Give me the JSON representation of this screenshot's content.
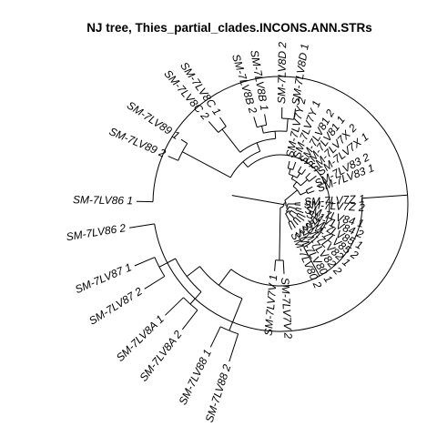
{
  "title": "NJ tree,  Thies_partial_clades.INCONS.ANN.STRs",
  "tip_labels": {
    "sm_7lv8d_1": "SM-7LV8D 1",
    "sm_7lv8d_2": "SM-7LV8D 2",
    "sm_7lv8b_1": "SM-7LV8B 1",
    "sm_7lv8b_2": "SM-7LV8B 2",
    "sm_7lv8c_1": "SM-7LV8C 1",
    "sm_7lv8c_2": "SM-7LV8C 2",
    "sm_7lv89_1": "SM-7LV89 1",
    "sm_7lv89_2": "SM-7LV89 2",
    "sm_7lv86_1": "SM-7LV86 1",
    "sm_7lv86_2": "SM-7LV86 2",
    "sm_7lv87_1": "SM-7LV87 1",
    "sm_7lv87_2": "SM-7LV87 2",
    "sm_7lv8a_1": "SM-7LV8A 1",
    "sm_7lv8a_2": "SM-7LV8A 2",
    "sm_7lv88_1": "SM-7LV88 1",
    "sm_7lv88_2": "SM-7LV88 2",
    "sm_7lv7v_1": "SM-7LV7V 1",
    "sm_7lv7v_2": "SM-7LV7V 2",
    "sm_7lv7y_2": "SM-7LV7Y 2",
    "sm_7lv7y_1": "SM-7LV7Y 1",
    "sm_7lv81_2": "SM-7LV81 2",
    "sm_7lv81_1": "SM-7LV81 1",
    "sm_7lv7x_2": "SM-7LV7X 2",
    "sm_7lv7x_1": "SM-7LV7X 1",
    "sm_7lv83_2": "SM-7LV83 2",
    "sm_7lv83_1": "SM-7LV83 1",
    "sm_7lv7z_1": "SM-7LV7Z 1",
    "sm_7lv7z_2": "SM-7LV7Z 2",
    "sm_7lv84_1": "SM-7LV84 1",
    "sm_7lv84_2": "SM-7LV84 2",
    "sm_7lv85_1": "SM-7LV85 1",
    "sm_7lv85_2": "SM-7LV85 2",
    "sm_7lv82_1": "SM-7LV82 1",
    "sm_7lv82_2": "SM-7LV82 2",
    "sm_7lv80_1": "SM-7LV80 1",
    "sm_7lv80_2": "SM-7LV80 2"
  }
}
